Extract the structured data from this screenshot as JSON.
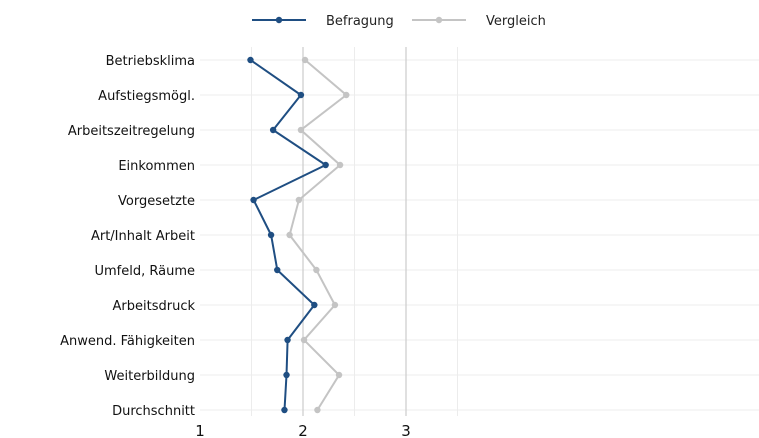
{
  "chart_data": {
    "type": "line",
    "orientation": "horizontal",
    "categories": [
      "Betriebsklima",
      "Aufstiegsmögl.",
      "Arbeitszeitregelung",
      "Einkommen",
      "Vorgesetzte",
      "Art/Inhalt Arbeit",
      "Umfeld, Räume",
      "Arbeitsdruck",
      "Anwend. Fähigkeiten",
      "Weiterbildung",
      "Durchschnitt"
    ],
    "series": [
      {
        "name": "Befragung",
        "color": "#1f4e82",
        "values": [
          1.49,
          1.98,
          1.71,
          2.22,
          1.52,
          1.69,
          1.75,
          2.11,
          1.85,
          1.84,
          1.82
        ]
      },
      {
        "name": "Vergleich",
        "color": "#c4c4c4",
        "values": [
          2.02,
          2.42,
          1.98,
          2.36,
          1.96,
          1.87,
          2.13,
          2.31,
          2.01,
          2.35,
          2.14
        ]
      }
    ],
    "x_ticks": [
      "1",
      "2",
      "3"
    ],
    "xlim": [
      1,
      3.6
    ],
    "grid": true,
    "legend_position": "top"
  }
}
